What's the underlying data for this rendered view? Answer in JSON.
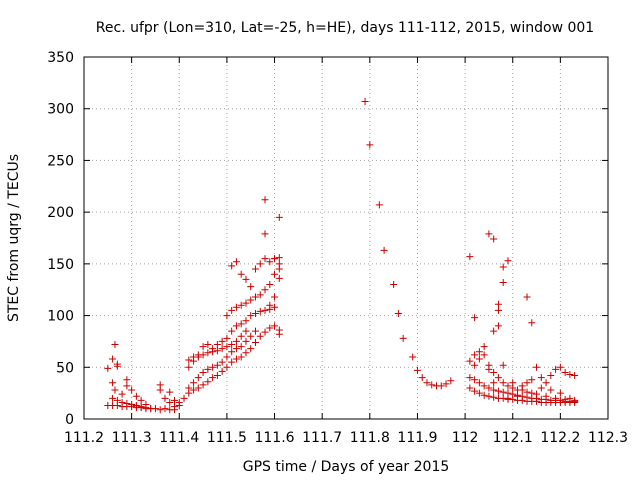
{
  "chart_data": {
    "type": "scatter",
    "title": "Rec. ufpr (Lon=310, Lat=-25, h=HE), days 111-112, 2015, window 001",
    "xlabel": "GPS time / Days of year 2015",
    "ylabel": "STEC from uqrg / TECUs",
    "xlim": [
      111.2,
      112.3
    ],
    "ylim": [
      0,
      350
    ],
    "xticks": [
      "111.2",
      "111.3",
      "111.4",
      "111.5",
      "111.6",
      "111.7",
      "111.8",
      "111.9",
      "112",
      "112.1",
      "112.2",
      "112.3"
    ],
    "yticks": [
      "0",
      "50",
      "100",
      "150",
      "200",
      "250",
      "300",
      "350"
    ],
    "grid": true,
    "legend": "none",
    "marker": "+",
    "color": "#cc0000",
    "series": [
      {
        "points": [
          [
            111.25,
            13
          ],
          [
            111.26,
            13
          ],
          [
            111.27,
            13
          ],
          [
            111.28,
            12
          ],
          [
            111.29,
            12
          ],
          [
            111.3,
            12
          ],
          [
            111.31,
            11
          ],
          [
            111.32,
            11
          ],
          [
            111.33,
            10
          ],
          [
            111.34,
            10
          ],
          [
            111.35,
            10
          ],
          [
            111.36,
            9
          ],
          [
            111.26,
            20
          ],
          [
            111.27,
            18
          ],
          [
            111.28,
            16
          ],
          [
            111.29,
            15
          ],
          [
            111.3,
            14
          ],
          [
            111.31,
            13
          ],
          [
            111.32,
            12
          ],
          [
            111.33,
            11
          ],
          [
            111.34,
            10
          ],
          [
            111.25,
            49
          ],
          [
            111.26,
            58
          ],
          [
            111.27,
            53
          ],
          [
            111.265,
            72
          ],
          [
            111.27,
            51
          ],
          [
            111.26,
            35
          ],
          [
            111.265,
            28
          ],
          [
            111.28,
            24
          ],
          [
            111.29,
            38
          ],
          [
            111.29,
            32
          ],
          [
            111.3,
            28
          ],
          [
            111.31,
            22
          ],
          [
            111.32,
            18
          ],
          [
            111.33,
            14
          ],
          [
            111.36,
            33
          ],
          [
            111.36,
            28
          ],
          [
            111.37,
            20
          ],
          [
            111.38,
            16
          ],
          [
            111.39,
            12
          ],
          [
            111.4,
            13
          ],
          [
            111.37,
            10
          ],
          [
            111.38,
            9
          ],
          [
            111.39,
            9
          ],
          [
            111.38,
            26
          ],
          [
            111.39,
            18
          ],
          [
            111.4,
            16
          ],
          [
            111.41,
            20
          ],
          [
            111.42,
            25
          ],
          [
            111.43,
            28
          ],
          [
            111.44,
            30
          ],
          [
            111.45,
            33
          ],
          [
            111.46,
            36
          ],
          [
            111.47,
            40
          ],
          [
            111.48,
            42
          ],
          [
            111.49,
            46
          ],
          [
            111.5,
            50
          ],
          [
            111.51,
            55
          ],
          [
            111.52,
            58
          ],
          [
            111.53,
            60
          ],
          [
            111.54,
            64
          ],
          [
            111.55,
            68
          ],
          [
            111.56,
            74
          ],
          [
            111.57,
            80
          ],
          [
            111.58,
            84
          ],
          [
            111.59,
            88
          ],
          [
            111.6,
            90
          ],
          [
            111.61,
            86
          ],
          [
            111.61,
            82
          ],
          [
            111.42,
            30
          ],
          [
            111.43,
            35
          ],
          [
            111.44,
            40
          ],
          [
            111.45,
            45
          ],
          [
            111.46,
            48
          ],
          [
            111.47,
            50
          ],
          [
            111.48,
            52
          ],
          [
            111.49,
            55
          ],
          [
            111.5,
            60
          ],
          [
            111.51,
            65
          ],
          [
            111.52,
            68
          ],
          [
            111.53,
            70
          ],
          [
            111.54,
            75
          ],
          [
            111.55,
            80
          ],
          [
            111.56,
            85
          ],
          [
            111.42,
            50
          ],
          [
            111.43,
            56
          ],
          [
            111.44,
            60
          ],
          [
            111.45,
            62
          ],
          [
            111.46,
            64
          ],
          [
            111.47,
            65
          ],
          [
            111.48,
            66
          ],
          [
            111.49,
            68
          ],
          [
            111.5,
            70
          ],
          [
            111.51,
            72
          ],
          [
            111.52,
            75
          ],
          [
            111.53,
            80
          ],
          [
            111.54,
            85
          ],
          [
            111.42,
            57
          ],
          [
            111.43,
            60
          ],
          [
            111.44,
            62
          ],
          [
            111.45,
            70
          ],
          [
            111.46,
            72
          ],
          [
            111.47,
            68
          ],
          [
            111.48,
            72
          ],
          [
            111.49,
            75
          ],
          [
            111.5,
            78
          ],
          [
            111.51,
            85
          ],
          [
            111.52,
            90
          ],
          [
            111.53,
            92
          ],
          [
            111.54,
            95
          ],
          [
            111.55,
            100
          ],
          [
            111.56,
            102
          ],
          [
            111.57,
            104
          ],
          [
            111.58,
            105
          ],
          [
            111.59,
            106
          ],
          [
            111.6,
            108
          ],
          [
            111.5,
            100
          ],
          [
            111.51,
            105
          ],
          [
            111.52,
            108
          ],
          [
            111.53,
            110
          ],
          [
            111.54,
            112
          ],
          [
            111.55,
            115
          ],
          [
            111.56,
            118
          ],
          [
            111.57,
            120
          ],
          [
            111.58,
            125
          ],
          [
            111.59,
            130
          ],
          [
            111.6,
            140
          ],
          [
            111.61,
            145
          ],
          [
            111.61,
            150
          ],
          [
            111.51,
            148
          ],
          [
            111.52,
            152
          ],
          [
            111.53,
            140
          ],
          [
            111.54,
            135
          ],
          [
            111.55,
            128
          ],
          [
            111.56,
            145
          ],
          [
            111.57,
            150
          ],
          [
            111.58,
            155
          ],
          [
            111.59,
            152
          ],
          [
            111.6,
            155
          ],
          [
            111.61,
            156
          ],
          [
            111.61,
            136
          ],
          [
            111.6,
            118
          ],
          [
            111.59,
            110
          ],
          [
            111.58,
            212
          ],
          [
            111.58,
            179
          ],
          [
            111.61,
            195
          ],
          [
            111.6,
            155
          ],
          [
            111.79,
            307
          ],
          [
            111.8,
            265
          ],
          [
            111.82,
            207
          ],
          [
            111.83,
            163
          ],
          [
            111.85,
            130
          ],
          [
            111.86,
            102
          ],
          [
            111.87,
            78
          ],
          [
            111.89,
            60
          ],
          [
            111.9,
            47
          ],
          [
            111.91,
            40
          ],
          [
            111.92,
            35
          ],
          [
            111.93,
            33
          ],
          [
            111.94,
            32
          ],
          [
            111.95,
            32
          ],
          [
            111.96,
            34
          ],
          [
            111.97,
            37
          ],
          [
            112.01,
            157
          ],
          [
            112.02,
            98
          ],
          [
            112.05,
            179
          ],
          [
            112.06,
            174
          ],
          [
            112.07,
            111
          ],
          [
            112.07,
            105
          ],
          [
            112.08,
            147
          ],
          [
            112.08,
            132
          ],
          [
            112.09,
            153
          ],
          [
            112.08,
            52
          ],
          [
            112.13,
            118
          ],
          [
            112.14,
            93
          ],
          [
            112.07,
            90
          ],
          [
            112.06,
            85
          ],
          [
            112.01,
            56
          ],
          [
            112.02,
            52
          ],
          [
            112.03,
            58
          ],
          [
            112.04,
            62
          ],
          [
            112.05,
            48
          ],
          [
            112.06,
            45
          ],
          [
            112.07,
            40
          ],
          [
            112.08,
            35
          ],
          [
            112.09,
            32
          ],
          [
            112.1,
            30
          ],
          [
            112.11,
            28
          ],
          [
            112.12,
            32
          ],
          [
            112.13,
            35
          ],
          [
            112.14,
            38
          ],
          [
            112.15,
            50
          ],
          [
            112.16,
            40
          ],
          [
            112.17,
            35
          ],
          [
            112.18,
            42
          ],
          [
            112.19,
            48
          ],
          [
            112.2,
            50
          ],
          [
            112.21,
            45
          ],
          [
            112.22,
            43
          ],
          [
            112.23,
            42
          ],
          [
            112.01,
            40
          ],
          [
            112.02,
            38
          ],
          [
            112.03,
            35
          ],
          [
            112.04,
            32
          ],
          [
            112.05,
            30
          ],
          [
            112.06,
            28
          ],
          [
            112.07,
            27
          ],
          [
            112.08,
            26
          ],
          [
            112.09,
            25
          ],
          [
            112.1,
            24
          ],
          [
            112.11,
            23
          ],
          [
            112.12,
            22
          ],
          [
            112.13,
            21
          ],
          [
            112.14,
            20
          ],
          [
            112.15,
            20
          ],
          [
            112.16,
            19
          ],
          [
            112.17,
            19
          ],
          [
            112.18,
            18
          ],
          [
            112.19,
            18
          ],
          [
            112.2,
            18
          ],
          [
            112.21,
            17
          ],
          [
            112.22,
            17
          ],
          [
            112.23,
            17
          ],
          [
            112.01,
            30
          ],
          [
            112.02,
            27
          ],
          [
            112.03,
            25
          ],
          [
            112.04,
            23
          ],
          [
            112.05,
            22
          ],
          [
            112.06,
            21
          ],
          [
            112.07,
            20
          ],
          [
            112.08,
            20
          ],
          [
            112.09,
            19
          ],
          [
            112.1,
            19
          ],
          [
            112.11,
            18
          ],
          [
            112.12,
            18
          ],
          [
            112.13,
            17
          ],
          [
            112.14,
            17
          ],
          [
            112.15,
            17
          ],
          [
            112.16,
            16
          ],
          [
            112.17,
            16
          ],
          [
            112.18,
            16
          ],
          [
            112.19,
            16
          ],
          [
            112.2,
            16
          ],
          [
            112.21,
            16
          ],
          [
            112.22,
            16
          ],
          [
            112.23,
            16
          ],
          [
            112.02,
            62
          ],
          [
            112.03,
            65
          ],
          [
            112.04,
            70
          ],
          [
            112.05,
            52
          ],
          [
            112.06,
            35
          ],
          [
            112.1,
            35
          ],
          [
            112.12,
            28
          ],
          [
            112.14,
            25
          ],
          [
            112.16,
            30
          ],
          [
            112.18,
            28
          ],
          [
            112.2,
            25
          ],
          [
            112.22,
            20
          ],
          [
            112.09,
            20
          ],
          [
            112.11,
            22
          ],
          [
            112.13,
            26
          ],
          [
            112.15,
            24
          ],
          [
            112.17,
            22
          ],
          [
            112.19,
            20
          ],
          [
            112.21,
            19
          ],
          [
            112.23,
            18
          ]
        ]
      }
    ]
  }
}
